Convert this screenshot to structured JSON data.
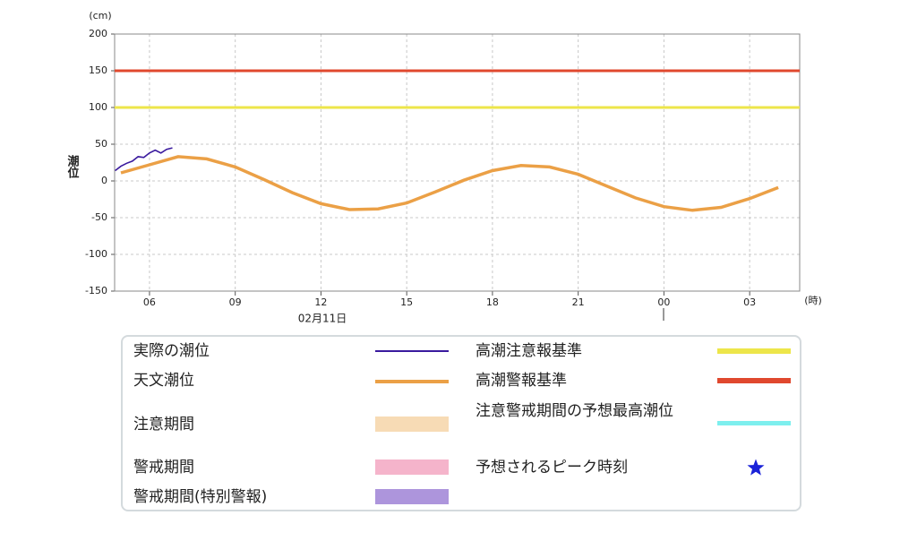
{
  "chart_data": {
    "type": "line",
    "y_unit": "(cm)",
    "x_unit": "(時)",
    "y_label": "潮位",
    "date_label": "02月11日",
    "xlim": [
      4.78,
      28.75
    ],
    "xticks": [
      {
        "value": 6,
        "label": "06"
      },
      {
        "value": 9,
        "label": "09"
      },
      12,
      15,
      18,
      21,
      {
        "value": 24,
        "label": "00"
      },
      {
        "value": 27,
        "label": "03"
      }
    ],
    "ylim": [
      -150,
      200
    ],
    "yticks": [
      -150,
      -100,
      -50,
      0,
      50,
      100,
      150,
      200
    ],
    "grid": true,
    "series": [
      {
        "name": "実際の潮位",
        "color": "#3a1a9e",
        "x": [
          4.8,
          5.0,
          5.2,
          5.4,
          5.6,
          5.8,
          6.0,
          6.2,
          6.4,
          6.6,
          6.8
        ],
        "values": [
          14,
          20,
          24,
          27,
          33,
          32,
          38,
          42,
          38,
          43,
          45
        ]
      },
      {
        "name": "天文潮位",
        "color": "#eba046",
        "x": [
          5,
          6,
          7,
          8,
          9,
          10,
          11,
          12,
          13,
          14,
          15,
          16,
          17,
          18,
          19,
          20,
          21,
          22,
          23,
          24,
          25,
          26,
          27,
          28
        ],
        "values": [
          11,
          22,
          33,
          30,
          19,
          2,
          -16,
          -31,
          -39,
          -38,
          -30,
          -15,
          1,
          14,
          21,
          19,
          9,
          -7,
          -23,
          -35,
          -40,
          -36,
          -24,
          -9
        ]
      }
    ],
    "reference_lines": [
      {
        "name": "高潮注意報基準",
        "color": "#ede64a",
        "value": 100
      },
      {
        "name": "高潮警報基準",
        "color": "#e0482e",
        "value": 150
      }
    ],
    "period_legend": [
      {
        "name": "注意期間",
        "color": "#f7dbb5"
      },
      {
        "name": "警戒期間",
        "color": "#f5b4cb"
      },
      {
        "name": "警戒期間(特別警報)",
        "color": "#ad95dc"
      }
    ],
    "other_legend": [
      {
        "name": "注意警戒期間の予想最高潮位",
        "color": "#7defee"
      },
      {
        "name": "予想されるピーク時刻",
        "color": "#1a22d8"
      }
    ]
  }
}
